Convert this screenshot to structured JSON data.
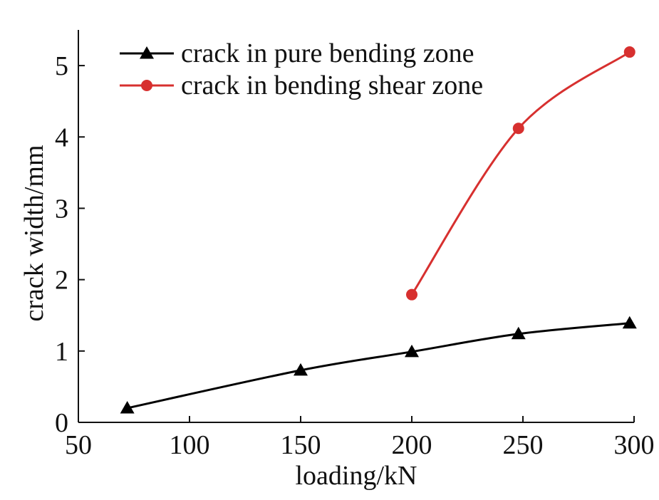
{
  "chart_data": {
    "type": "line",
    "title": "",
    "xlabel": "loading/kN",
    "ylabel": "crack width/mm",
    "xlim": [
      50,
      300
    ],
    "ylim": [
      0,
      5.5
    ],
    "xticks": [
      50,
      100,
      150,
      200,
      250,
      300
    ],
    "yticks": [
      0,
      1,
      2,
      3,
      4,
      5
    ],
    "grid": false,
    "legend_position": "top-left",
    "series": [
      {
        "name": "crack in pure bending zone",
        "color": "#000000",
        "marker": "triangle",
        "x": [
          72,
          150,
          200,
          248,
          298
        ],
        "y": [
          0.2,
          0.73,
          0.99,
          1.24,
          1.39
        ]
      },
      {
        "name": "crack in bending shear zone",
        "color": "#d7302f",
        "marker": "circle",
        "x": [
          200,
          248,
          298
        ],
        "y": [
          1.79,
          4.12,
          5.19
        ]
      }
    ]
  }
}
